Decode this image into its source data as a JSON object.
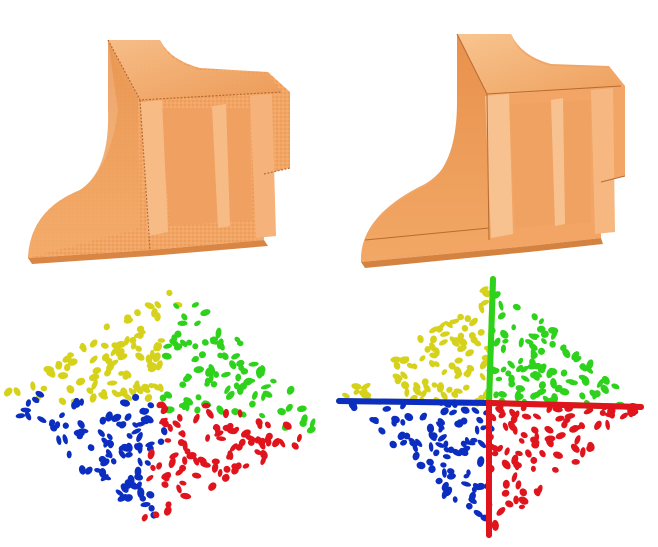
{
  "figure": {
    "description_panels": [
      "noisy-shape",
      "denoised-shape",
      "noisy-octahedron-points",
      "denoised-octahedron-points"
    ]
  },
  "colors": {
    "background": "#ffffff",
    "shape_fill": "#f2a564",
    "shape_light": "#f7c08c",
    "shape_dark": "#c9773a",
    "shape_edge": "#a85e2a",
    "yellow": "#d6d21c",
    "green": "#2ed21c",
    "blue": "#0c2ec0",
    "red": "#e0141c"
  },
  "point_cloud": {
    "noisy_count_per_face": 90,
    "clean_count_per_face": 90
  }
}
